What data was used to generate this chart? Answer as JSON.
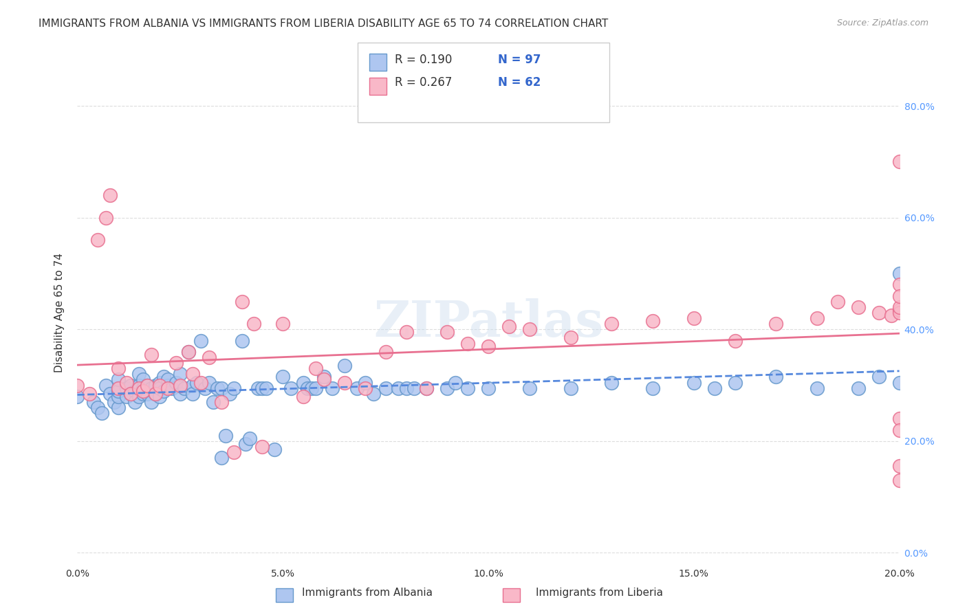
{
  "title": "IMMIGRANTS FROM ALBANIA VS IMMIGRANTS FROM LIBERIA DISABILITY AGE 65 TO 74 CORRELATION CHART",
  "source": "Source: ZipAtlas.com",
  "ylabel": "Disability Age 65 to 74",
  "xlabel": "",
  "xlim": [
    0.0,
    0.2
  ],
  "ylim": [
    -0.02,
    0.88
  ],
  "xticks": [
    0.0,
    0.05,
    0.1,
    0.15,
    0.2
  ],
  "yticks": [
    0.0,
    0.2,
    0.4,
    0.6,
    0.8
  ],
  "ytick_labels_right": [
    "0.0%",
    "20.0%",
    "40.0%",
    "60.0%",
    "80.0%"
  ],
  "albania_color": "#aec6f0",
  "albania_edge": "#6699cc",
  "liberia_color": "#f9b8c8",
  "liberia_edge": "#e87090",
  "albania_R": 0.19,
  "albania_N": 97,
  "liberia_R": 0.267,
  "liberia_N": 62,
  "legend_label1": "R = 0.190   N = 97",
  "legend_label2": "R = 0.267   N = 62",
  "watermark": "ZIPatlas",
  "bottom_legend1": "Immigrants from Albania",
  "bottom_legend2": "Immigrants from Liberia",
  "albania_x": [
    0.0,
    0.004,
    0.005,
    0.006,
    0.007,
    0.008,
    0.009,
    0.01,
    0.01,
    0.01,
    0.01,
    0.01,
    0.012,
    0.012,
    0.013,
    0.013,
    0.014,
    0.014,
    0.015,
    0.015,
    0.015,
    0.016,
    0.016,
    0.016,
    0.017,
    0.017,
    0.018,
    0.018,
    0.019,
    0.019,
    0.02,
    0.02,
    0.02,
    0.021,
    0.021,
    0.022,
    0.022,
    0.023,
    0.024,
    0.025,
    0.025,
    0.026,
    0.027,
    0.028,
    0.028,
    0.029,
    0.03,
    0.031,
    0.032,
    0.033,
    0.034,
    0.035,
    0.035,
    0.036,
    0.037,
    0.038,
    0.04,
    0.041,
    0.042,
    0.044,
    0.045,
    0.046,
    0.048,
    0.05,
    0.052,
    0.055,
    0.056,
    0.057,
    0.058,
    0.06,
    0.062,
    0.065,
    0.068,
    0.07,
    0.072,
    0.075,
    0.078,
    0.08,
    0.082,
    0.085,
    0.09,
    0.092,
    0.095,
    0.1,
    0.11,
    0.12,
    0.13,
    0.14,
    0.15,
    0.155,
    0.16,
    0.17,
    0.18,
    0.19,
    0.195,
    0.2,
    0.2
  ],
  "albania_y": [
    0.28,
    0.27,
    0.26,
    0.25,
    0.3,
    0.285,
    0.27,
    0.26,
    0.295,
    0.28,
    0.29,
    0.31,
    0.28,
    0.295,
    0.3,
    0.285,
    0.29,
    0.27,
    0.32,
    0.3,
    0.28,
    0.31,
    0.295,
    0.285,
    0.3,
    0.285,
    0.295,
    0.27,
    0.3,
    0.285,
    0.305,
    0.28,
    0.295,
    0.315,
    0.29,
    0.3,
    0.31,
    0.295,
    0.305,
    0.32,
    0.285,
    0.295,
    0.36,
    0.3,
    0.285,
    0.305,
    0.38,
    0.295,
    0.305,
    0.27,
    0.295,
    0.295,
    0.17,
    0.21,
    0.285,
    0.295,
    0.38,
    0.195,
    0.205,
    0.295,
    0.295,
    0.295,
    0.185,
    0.315,
    0.295,
    0.305,
    0.295,
    0.295,
    0.295,
    0.315,
    0.295,
    0.335,
    0.295,
    0.305,
    0.285,
    0.295,
    0.295,
    0.295,
    0.295,
    0.295,
    0.295,
    0.305,
    0.295,
    0.295,
    0.295,
    0.295,
    0.305,
    0.295,
    0.305,
    0.295,
    0.305,
    0.315,
    0.295,
    0.295,
    0.315,
    0.305,
    0.5
  ],
  "liberia_x": [
    0.0,
    0.003,
    0.005,
    0.007,
    0.008,
    0.01,
    0.01,
    0.012,
    0.013,
    0.015,
    0.016,
    0.017,
    0.018,
    0.019,
    0.02,
    0.022,
    0.024,
    0.025,
    0.027,
    0.028,
    0.03,
    0.032,
    0.035,
    0.038,
    0.04,
    0.043,
    0.045,
    0.05,
    0.055,
    0.058,
    0.06,
    0.065,
    0.07,
    0.075,
    0.08,
    0.085,
    0.09,
    0.095,
    0.1,
    0.105,
    0.11,
    0.12,
    0.13,
    0.14,
    0.15,
    0.16,
    0.17,
    0.18,
    0.185,
    0.19,
    0.195,
    0.198,
    0.2,
    0.2,
    0.2,
    0.2,
    0.2,
    0.2,
    0.2,
    0.2,
    0.2,
    0.2
  ],
  "liberia_y": [
    0.3,
    0.285,
    0.56,
    0.6,
    0.64,
    0.33,
    0.295,
    0.305,
    0.285,
    0.295,
    0.29,
    0.3,
    0.355,
    0.285,
    0.3,
    0.295,
    0.34,
    0.3,
    0.36,
    0.32,
    0.305,
    0.35,
    0.27,
    0.18,
    0.45,
    0.41,
    0.19,
    0.41,
    0.28,
    0.33,
    0.31,
    0.305,
    0.295,
    0.36,
    0.395,
    0.295,
    0.395,
    0.375,
    0.37,
    0.405,
    0.4,
    0.385,
    0.41,
    0.415,
    0.42,
    0.38,
    0.41,
    0.42,
    0.45,
    0.44,
    0.43,
    0.425,
    0.13,
    0.24,
    0.22,
    0.155,
    0.7,
    0.435,
    0.43,
    0.44,
    0.48,
    0.46
  ],
  "grid_color": "#dddddd",
  "background_color": "#ffffff",
  "title_fontsize": 11,
  "axis_fontsize": 11,
  "tick_fontsize": 10,
  "legend_fontsize": 12
}
